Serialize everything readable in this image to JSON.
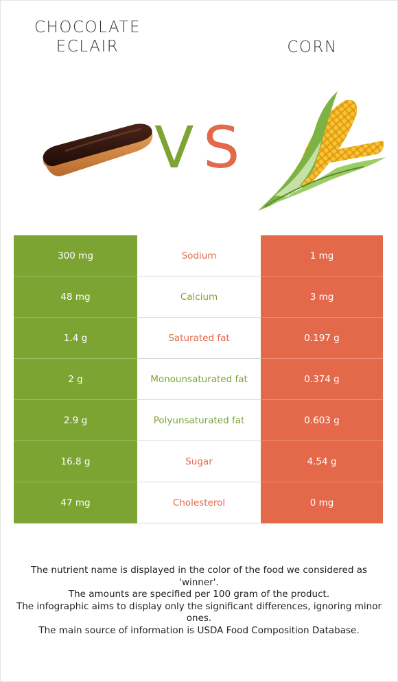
{
  "header": {
    "left_food": "CHOCOLATE ECLAIR",
    "right_food": "CORN",
    "vs_v": "V",
    "vs_s": "S"
  },
  "colors": {
    "left": "#7ca432",
    "right": "#e4694b"
  },
  "images": {
    "left_icon": "eclair-illustration",
    "right_icon": "corn-illustration"
  },
  "rows": [
    {
      "nutrient": "Sodium",
      "left": "300 mg",
      "right": "1 mg",
      "winner": "right"
    },
    {
      "nutrient": "Calcium",
      "left": "48 mg",
      "right": "3 mg",
      "winner": "left"
    },
    {
      "nutrient": "Saturated fat",
      "left": "1.4 g",
      "right": "0.197 g",
      "winner": "right"
    },
    {
      "nutrient": "Monounsaturated fat",
      "left": "2 g",
      "right": "0.374 g",
      "winner": "left"
    },
    {
      "nutrient": "Polyunsaturated fat",
      "left": "2.9 g",
      "right": "0.603 g",
      "winner": "left"
    },
    {
      "nutrient": "Sugar",
      "left": "16.8 g",
      "right": "4.54 g",
      "winner": "right"
    },
    {
      "nutrient": "Cholesterol",
      "left": "47 mg",
      "right": "0 mg",
      "winner": "right"
    }
  ],
  "notes": [
    "The nutrient name is displayed in the color of the food we considered as 'winner'.",
    "The amounts are specified per 100 gram of the product.",
    "The infographic aims to display only the significant differences, ignoring minor ones.",
    "The main source of information is USDA Food Composition Database."
  ]
}
